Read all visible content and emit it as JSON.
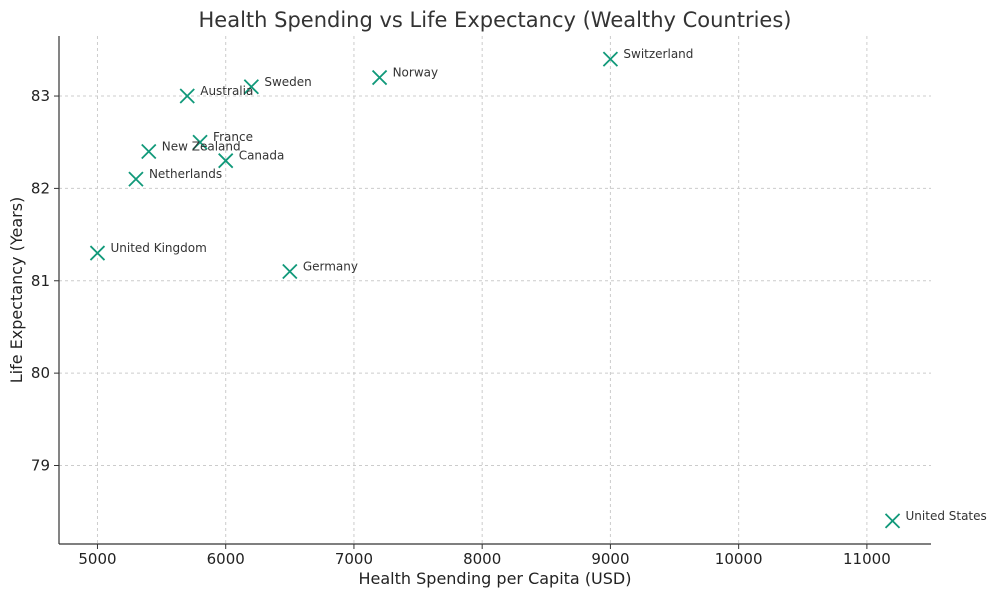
{
  "chart_data": {
    "type": "scatter",
    "title": "Health Spending vs Life Expectancy (Wealthy Countries)",
    "xlabel": "Health Spending per Capita (USD)",
    "ylabel": "Life Expectancy (Years)",
    "xlim": [
      4700,
      11500
    ],
    "ylim": [
      78.15,
      83.65
    ],
    "xticks": [
      5000,
      6000,
      7000,
      8000,
      9000,
      10000,
      11000
    ],
    "yticks": [
      79,
      80,
      81,
      82,
      83
    ],
    "grid": true,
    "marker": "x",
    "color": "#11997a",
    "points": [
      {
        "label": "United States",
        "x": 11200,
        "y": 78.4
      },
      {
        "label": "Switzerland",
        "x": 9000,
        "y": 83.4
      },
      {
        "label": "Norway",
        "x": 7200,
        "y": 83.2
      },
      {
        "label": "Sweden",
        "x": 6200,
        "y": 83.1
      },
      {
        "label": "Australia",
        "x": 5700,
        "y": 83.0
      },
      {
        "label": "France",
        "x": 5800,
        "y": 82.5
      },
      {
        "label": "New Zealand",
        "x": 5400,
        "y": 82.4
      },
      {
        "label": "Canada",
        "x": 6000,
        "y": 82.3
      },
      {
        "label": "Netherlands",
        "x": 5300,
        "y": 82.1
      },
      {
        "label": "United Kingdom",
        "x": 5000,
        "y": 81.3
      },
      {
        "label": "Germany",
        "x": 6500,
        "y": 81.1
      }
    ]
  }
}
